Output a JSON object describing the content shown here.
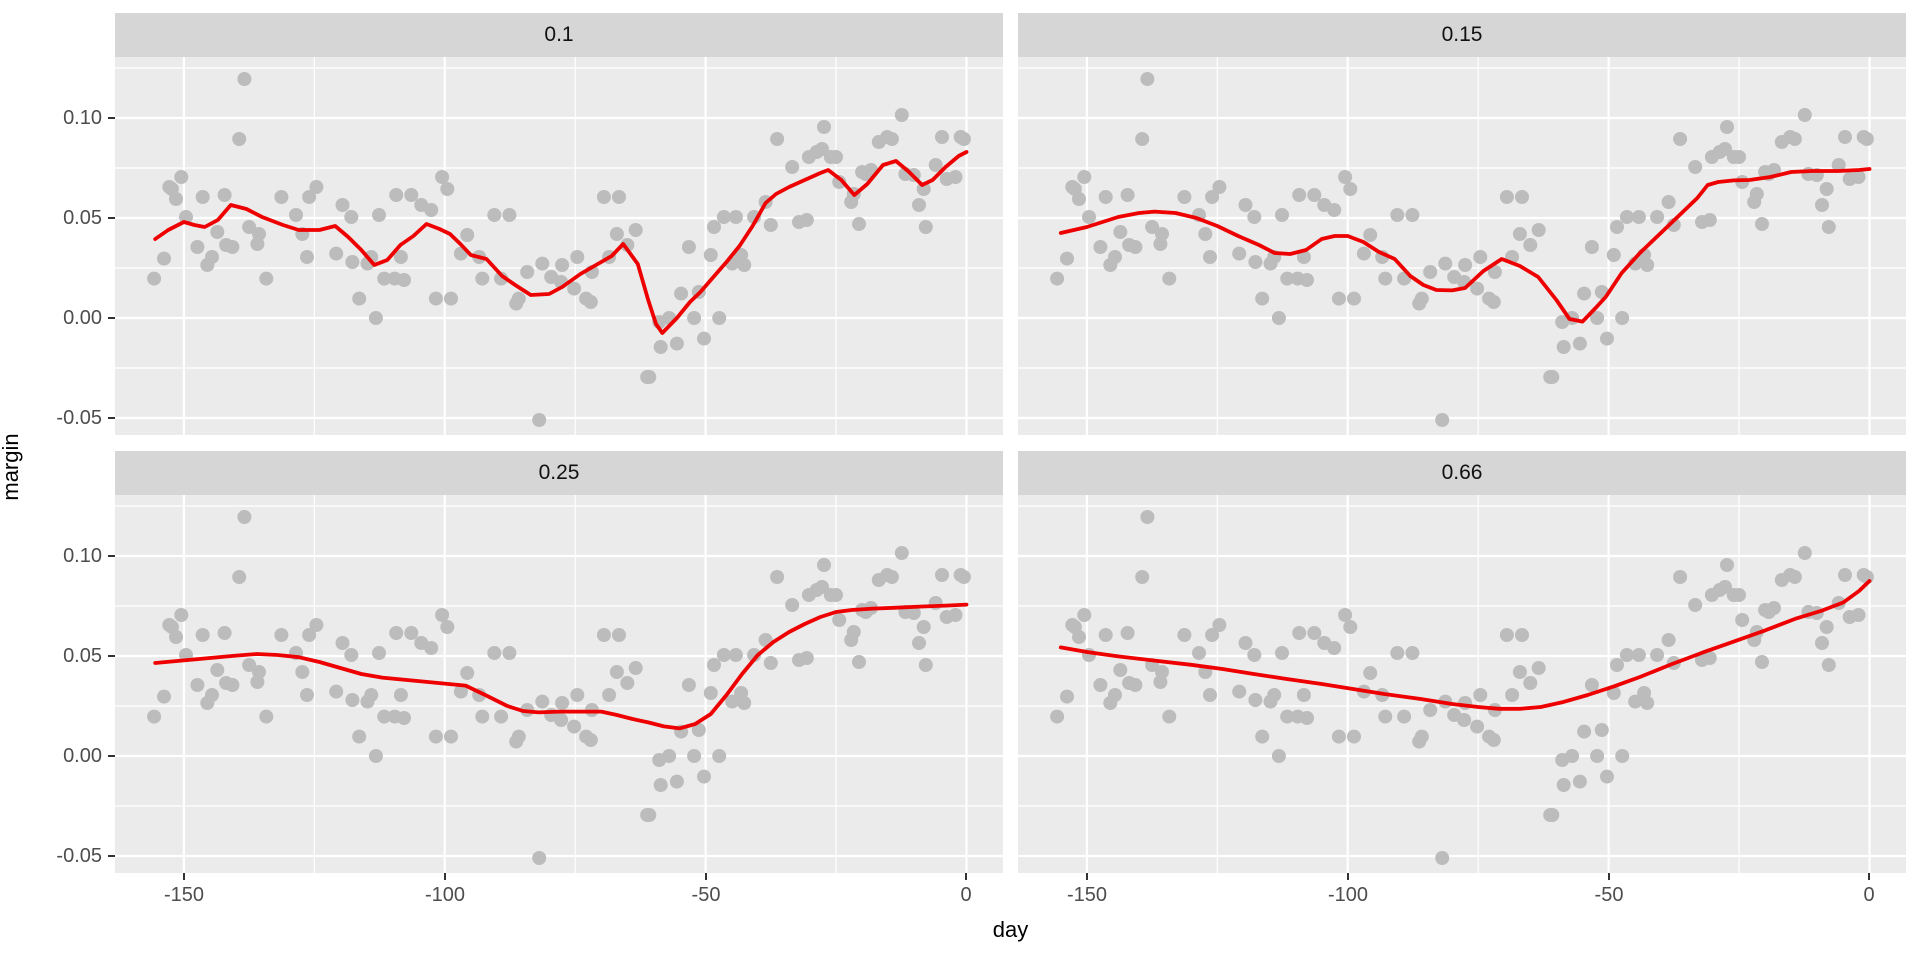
{
  "chart_data": {
    "type": "scatter",
    "description": "Faceted scatter plot of margin vs day with red loess smooth lines; facet label = smoothing span; same points in all four facets",
    "xlabel": "day",
    "ylabel": "margin",
    "xlim": [
      -163.2,
      7.0
    ],
    "ylim": [
      -0.0585,
      0.1305
    ],
    "x_ticks": [
      {
        "v": -150,
        "label": "-150"
      },
      {
        "v": -100,
        "label": "-100"
      },
      {
        "v": -50,
        "label": "-50"
      },
      {
        "v": 0,
        "label": "0"
      }
    ],
    "y_ticks": [
      {
        "v": 0.1,
        "label": "0.10"
      },
      {
        "v": 0.05,
        "label": "0.05"
      },
      {
        "v": 0.0,
        "label": "0.00"
      },
      {
        "v": -0.05,
        "label": "-0.05"
      }
    ],
    "x_minor": [
      -125,
      -75,
      -25
    ],
    "y_minor": [
      0.125,
      0.075,
      0.025,
      -0.025
    ],
    "grid": "on",
    "colors": {
      "panel_bg": "#ebebeb",
      "strip_bg": "#d6d6d6",
      "grid": "#ffffff",
      "point": "#bcbcbc",
      "smooth_line": "#ee0000",
      "tick_text": "#4d4d4d",
      "tick_mark": "#333333"
    },
    "shared_points": {
      "day": [
        -138.4,
        -139.4,
        -152.8,
        -150.5,
        -152.3,
        -151.5,
        -146.4,
        -142.2,
        -149.6,
        -143.6,
        -137.5,
        -135.6,
        -131.3,
        -128.5,
        -127.3,
        -126,
        -124.6,
        -119.6,
        -117.9,
        -112.6,
        -109.3,
        -106.4,
        -104.5,
        -102.6,
        -100.5,
        -99.5,
        -95.7,
        -90.5,
        -87.6,
        -69.5,
        -66.6,
        -67,
        -63.4,
        -48.4,
        -46.5,
        -44.2,
        -40.7,
        -38.5,
        -37.5,
        -36.3,
        -33.4,
        -32.1,
        -30.6,
        -30.2,
        -28.7,
        -27.7,
        -27.3,
        -26,
        -25,
        -24.4,
        -22.1,
        -21.6,
        -20.6,
        -20,
        -19.3,
        -18.3,
        -16.8,
        -15.2,
        -14.3,
        -12.4,
        -11.7,
        -10.1,
        -9.1,
        -8.2,
        -7.8,
        -5.9,
        -4.7,
        -3.8,
        -2.1,
        -1.1,
        -0.5,
        -153.8,
        -155.7,
        -147.4,
        -145.5,
        -144.6,
        -141.9,
        -140.7,
        -135.9,
        -134.2,
        -126.4,
        -120.8,
        -117.7,
        -116.4,
        -114.8,
        -114.1,
        -113.2,
        -111.6,
        -109.6,
        -108.4,
        -107.8,
        -101.7,
        -98.8,
        -96.9,
        -93.4,
        -92.8,
        -89.2,
        -86.3,
        -85.8,
        -84.2,
        -81.9,
        -81.3,
        -79.6,
        -77.7,
        -77.5,
        -75.2,
        -74.6,
        -72.9,
        -72,
        -71.8,
        -68.5,
        -65,
        -61.2,
        -60.8,
        -58.9,
        -58.6,
        -57,
        -55.5,
        -54.7,
        -53.2,
        -52.2,
        -51.3,
        -50.3,
        -49,
        -47.4,
        -44.9,
        -43.2,
        -42.6
      ],
      "margin": [
        0.1195,
        0.0895,
        0.0655,
        0.0705,
        0.0645,
        0.0595,
        0.0605,
        0.0615,
        0.0505,
        0.043,
        0.0455,
        0.042,
        0.0605,
        0.0515,
        0.042,
        0.0605,
        0.0655,
        0.0565,
        0.0505,
        0.0515,
        0.0615,
        0.0615,
        0.0565,
        0.054,
        0.0705,
        0.0645,
        0.0415,
        0.0515,
        0.0515,
        0.0605,
        0.0605,
        0.042,
        0.044,
        0.0455,
        0.0505,
        0.0505,
        0.0505,
        0.058,
        0.0465,
        0.0895,
        0.0755,
        0.048,
        0.049,
        0.0805,
        0.083,
        0.0845,
        0.0955,
        0.0805,
        0.0805,
        0.068,
        0.058,
        0.062,
        0.047,
        0.073,
        0.072,
        0.074,
        0.088,
        0.0905,
        0.0895,
        0.1015,
        0.072,
        0.0715,
        0.0565,
        0.0645,
        0.0455,
        0.0765,
        0.0905,
        0.0695,
        0.0705,
        0.0905,
        0.0895,
        0.0297,
        0.0197,
        0.0355,
        0.0265,
        0.0305,
        0.0365,
        0.0355,
        0.037,
        0.0197,
        0.0305,
        0.0322,
        0.028,
        0.0097,
        0.0272,
        0.0305,
        0.0,
        0.0197,
        0.0197,
        0.0305,
        0.019,
        0.0097,
        0.0097,
        0.0322,
        0.0305,
        0.0197,
        0.0197,
        0.0072,
        0.0097,
        0.023,
        -0.051,
        0.0272,
        0.0205,
        0.018,
        0.0265,
        0.0147,
        0.0305,
        0.0097,
        0.008,
        0.023,
        0.0305,
        0.0365,
        -0.0295,
        -0.0295,
        -0.002,
        -0.0145,
        0.0,
        -0.0128,
        0.0122,
        0.0355,
        0.0,
        0.013,
        -0.0103,
        0.0315,
        0.0,
        0.0272,
        0.0315,
        0.0265
      ]
    },
    "facets": [
      {
        "label": "0.1",
        "smooth": [
          [
            -155.5,
            0.0395
          ],
          [
            -153,
            0.044
          ],
          [
            -150,
            0.048
          ],
          [
            -148,
            0.0465
          ],
          [
            -146,
            0.0455
          ],
          [
            -143.5,
            0.049
          ],
          [
            -141,
            0.0565
          ],
          [
            -138,
            0.0545
          ],
          [
            -135,
            0.0505
          ],
          [
            -131,
            0.0465
          ],
          [
            -128,
            0.044
          ],
          [
            -124,
            0.044
          ],
          [
            -121,
            0.046
          ],
          [
            -118.5,
            0.0405
          ],
          [
            -116,
            0.034
          ],
          [
            -113.5,
            0.0265
          ],
          [
            -111,
            0.029
          ],
          [
            -108.5,
            0.0365
          ],
          [
            -106,
            0.041
          ],
          [
            -103.5,
            0.047
          ],
          [
            -101,
            0.0445
          ],
          [
            -99,
            0.042
          ],
          [
            -97,
            0.037
          ],
          [
            -95,
            0.0315
          ],
          [
            -92,
            0.0295
          ],
          [
            -89,
            0.021
          ],
          [
            -86.5,
            0.0165
          ],
          [
            -83.5,
            0.0115
          ],
          [
            -80,
            0.012
          ],
          [
            -77.5,
            0.0155
          ],
          [
            -74,
            0.022
          ],
          [
            -71,
            0.0265
          ],
          [
            -68,
            0.031
          ],
          [
            -65.8,
            0.037
          ],
          [
            -63,
            0.027
          ],
          [
            -61,
            0.009
          ],
          [
            -59.5,
            -0.003
          ],
          [
            -58.3,
            -0.0075
          ],
          [
            -57,
            -0.004
          ],
          [
            -55.5,
            0.0
          ],
          [
            -53,
            0.008
          ],
          [
            -51,
            0.013
          ],
          [
            -48.5,
            0.0205
          ],
          [
            -46,
            0.028
          ],
          [
            -43.5,
            0.036
          ],
          [
            -41,
            0.046
          ],
          [
            -38.5,
            0.0575
          ],
          [
            -36.5,
            0.062
          ],
          [
            -34,
            0.0655
          ],
          [
            -31,
            0.069
          ],
          [
            -28,
            0.0725
          ],
          [
            -26.5,
            0.074
          ],
          [
            -24,
            0.069
          ],
          [
            -21.5,
            0.0615
          ],
          [
            -19,
            0.067
          ],
          [
            -16,
            0.0765
          ],
          [
            -13.5,
            0.0785
          ],
          [
            -11,
            0.073
          ],
          [
            -8.5,
            0.0665
          ],
          [
            -6.5,
            0.069
          ],
          [
            -4,
            0.0755
          ],
          [
            -1.5,
            0.081
          ],
          [
            0,
            0.083
          ]
        ]
      },
      {
        "label": "0.15",
        "smooth": [
          [
            -155,
            0.0425
          ],
          [
            -150,
            0.0455
          ],
          [
            -144,
            0.0505
          ],
          [
            -140,
            0.0525
          ],
          [
            -137,
            0.0532
          ],
          [
            -133,
            0.0525
          ],
          [
            -129,
            0.05
          ],
          [
            -125,
            0.046
          ],
          [
            -121,
            0.041
          ],
          [
            -117,
            0.0365
          ],
          [
            -114,
            0.0325
          ],
          [
            -111,
            0.032
          ],
          [
            -108,
            0.034
          ],
          [
            -105,
            0.0395
          ],
          [
            -102.5,
            0.041
          ],
          [
            -100,
            0.041
          ],
          [
            -97,
            0.038
          ],
          [
            -94,
            0.033
          ],
          [
            -91,
            0.0295
          ],
          [
            -88,
            0.021
          ],
          [
            -85.5,
            0.0165
          ],
          [
            -83,
            0.014
          ],
          [
            -80,
            0.0138
          ],
          [
            -77.5,
            0.015
          ],
          [
            -74,
            0.0235
          ],
          [
            -70.5,
            0.0295
          ],
          [
            -67,
            0.026
          ],
          [
            -63.5,
            0.0205
          ],
          [
            -60,
            0.009
          ],
          [
            -57.5,
            -0.0005
          ],
          [
            -55,
            -0.0018
          ],
          [
            -52.5,
            0.005
          ],
          [
            -50.5,
            0.0107
          ],
          [
            -47.5,
            0.0225
          ],
          [
            -44,
            0.0325
          ],
          [
            -40,
            0.0425
          ],
          [
            -36,
            0.0525
          ],
          [
            -33,
            0.06
          ],
          [
            -31,
            0.0665
          ],
          [
            -29,
            0.068
          ],
          [
            -26,
            0.0688
          ],
          [
            -23,
            0.069
          ],
          [
            -19,
            0.0705
          ],
          [
            -15,
            0.073
          ],
          [
            -11,
            0.0735
          ],
          [
            -6,
            0.0735
          ],
          [
            -2,
            0.074
          ],
          [
            0,
            0.0745
          ]
        ]
      },
      {
        "label": "0.25",
        "smooth": [
          [
            -155.5,
            0.0465
          ],
          [
            -150,
            0.0478
          ],
          [
            -145,
            0.049
          ],
          [
            -140,
            0.0502
          ],
          [
            -136,
            0.051
          ],
          [
            -132,
            0.0505
          ],
          [
            -128,
            0.0494
          ],
          [
            -124,
            0.047
          ],
          [
            -120,
            0.044
          ],
          [
            -116,
            0.041
          ],
          [
            -112,
            0.0392
          ],
          [
            -108,
            0.0382
          ],
          [
            -104,
            0.0372
          ],
          [
            -100,
            0.0362
          ],
          [
            -96,
            0.0352
          ],
          [
            -92,
            0.0302
          ],
          [
            -88,
            0.025
          ],
          [
            -85,
            0.0225
          ],
          [
            -82,
            0.0218
          ],
          [
            -78,
            0.0222
          ],
          [
            -74,
            0.0222
          ],
          [
            -70,
            0.0222
          ],
          [
            -67,
            0.0205
          ],
          [
            -64,
            0.0185
          ],
          [
            -61,
            0.0168
          ],
          [
            -58,
            0.0148
          ],
          [
            -55,
            0.0138
          ],
          [
            -52,
            0.016
          ],
          [
            -49,
            0.021
          ],
          [
            -46,
            0.0305
          ],
          [
            -43,
            0.041
          ],
          [
            -40,
            0.0505
          ],
          [
            -37,
            0.057
          ],
          [
            -34,
            0.062
          ],
          [
            -31,
            0.066
          ],
          [
            -28,
            0.0695
          ],
          [
            -25,
            0.072
          ],
          [
            -22,
            0.073
          ],
          [
            -18,
            0.0737
          ],
          [
            -14,
            0.0741
          ],
          [
            -9,
            0.0747
          ],
          [
            -4,
            0.0752
          ],
          [
            0,
            0.0757
          ]
        ]
      },
      {
        "label": "0.66",
        "smooth": [
          [
            -155,
            0.0543
          ],
          [
            -150,
            0.052
          ],
          [
            -144,
            0.0498
          ],
          [
            -137,
            0.0477
          ],
          [
            -130,
            0.0456
          ],
          [
            -124,
            0.0435
          ],
          [
            -118,
            0.041
          ],
          [
            -112,
            0.0386
          ],
          [
            -105,
            0.036
          ],
          [
            -99,
            0.0335
          ],
          [
            -93,
            0.031
          ],
          [
            -86,
            0.0285
          ],
          [
            -80,
            0.026
          ],
          [
            -75,
            0.0245
          ],
          [
            -71,
            0.0236
          ],
          [
            -67,
            0.0236
          ],
          [
            -63,
            0.0245
          ],
          [
            -59,
            0.0268
          ],
          [
            -54,
            0.0305
          ],
          [
            -49,
            0.0348
          ],
          [
            -44,
            0.0395
          ],
          [
            -38,
            0.0458
          ],
          [
            -32,
            0.0517
          ],
          [
            -26,
            0.0572
          ],
          [
            -20,
            0.0628
          ],
          [
            -14,
            0.0688
          ],
          [
            -9,
            0.0728
          ],
          [
            -5,
            0.0768
          ],
          [
            -2,
            0.0825
          ],
          [
            0,
            0.0875
          ]
        ]
      }
    ]
  }
}
